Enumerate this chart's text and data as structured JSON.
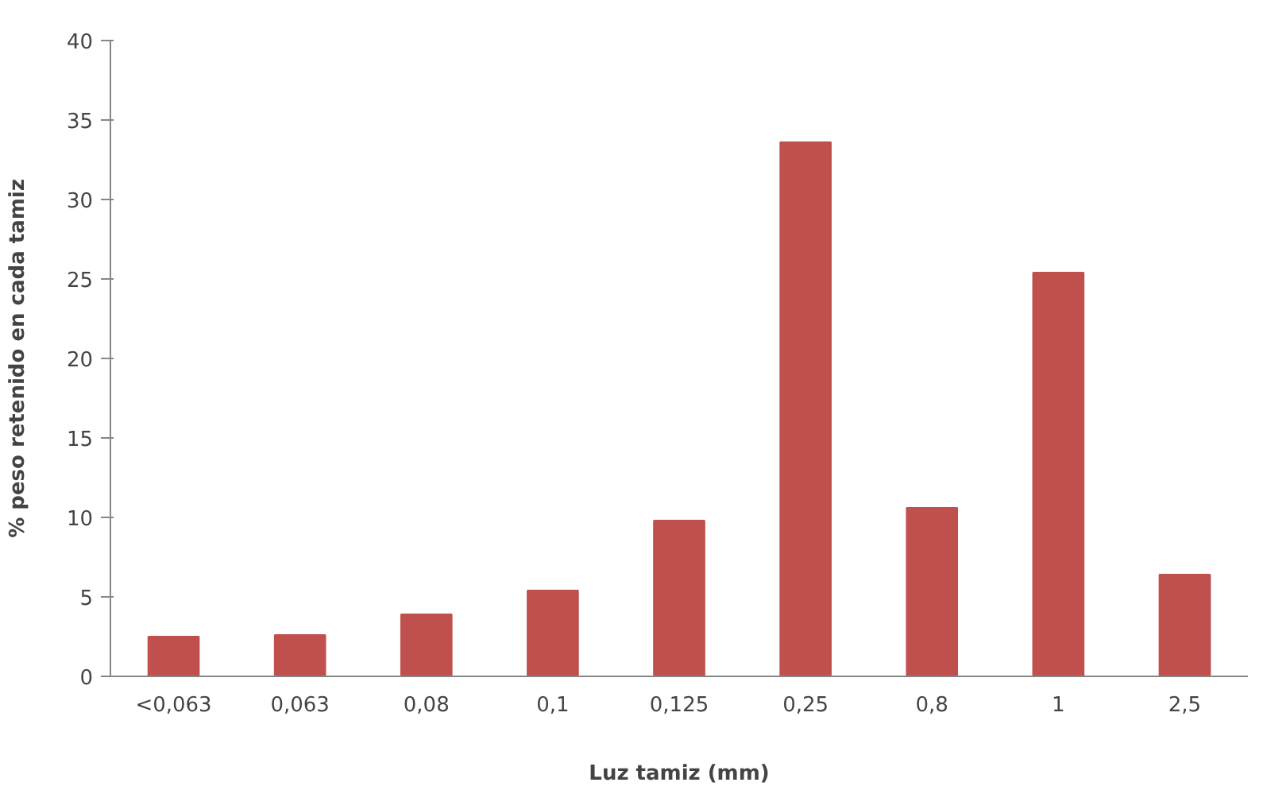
{
  "chart_data": {
    "type": "bar",
    "xlabel": "Luz tamiz (mm)",
    "ylabel": "% peso retenido en cada tamiz",
    "categories": [
      "<0,063",
      "0,063",
      "0,08",
      "0,1",
      "0,125",
      "0,25",
      "0,8",
      "1",
      "2,5"
    ],
    "values": [
      2.5,
      2.6,
      3.9,
      5.4,
      9.8,
      33.6,
      10.6,
      25.4,
      6.4
    ],
    "color": "#c0504d",
    "ylim": [
      0,
      40
    ],
    "yticks": [
      0,
      5,
      10,
      15,
      20,
      25,
      30,
      35,
      40
    ],
    "grid": false
  }
}
